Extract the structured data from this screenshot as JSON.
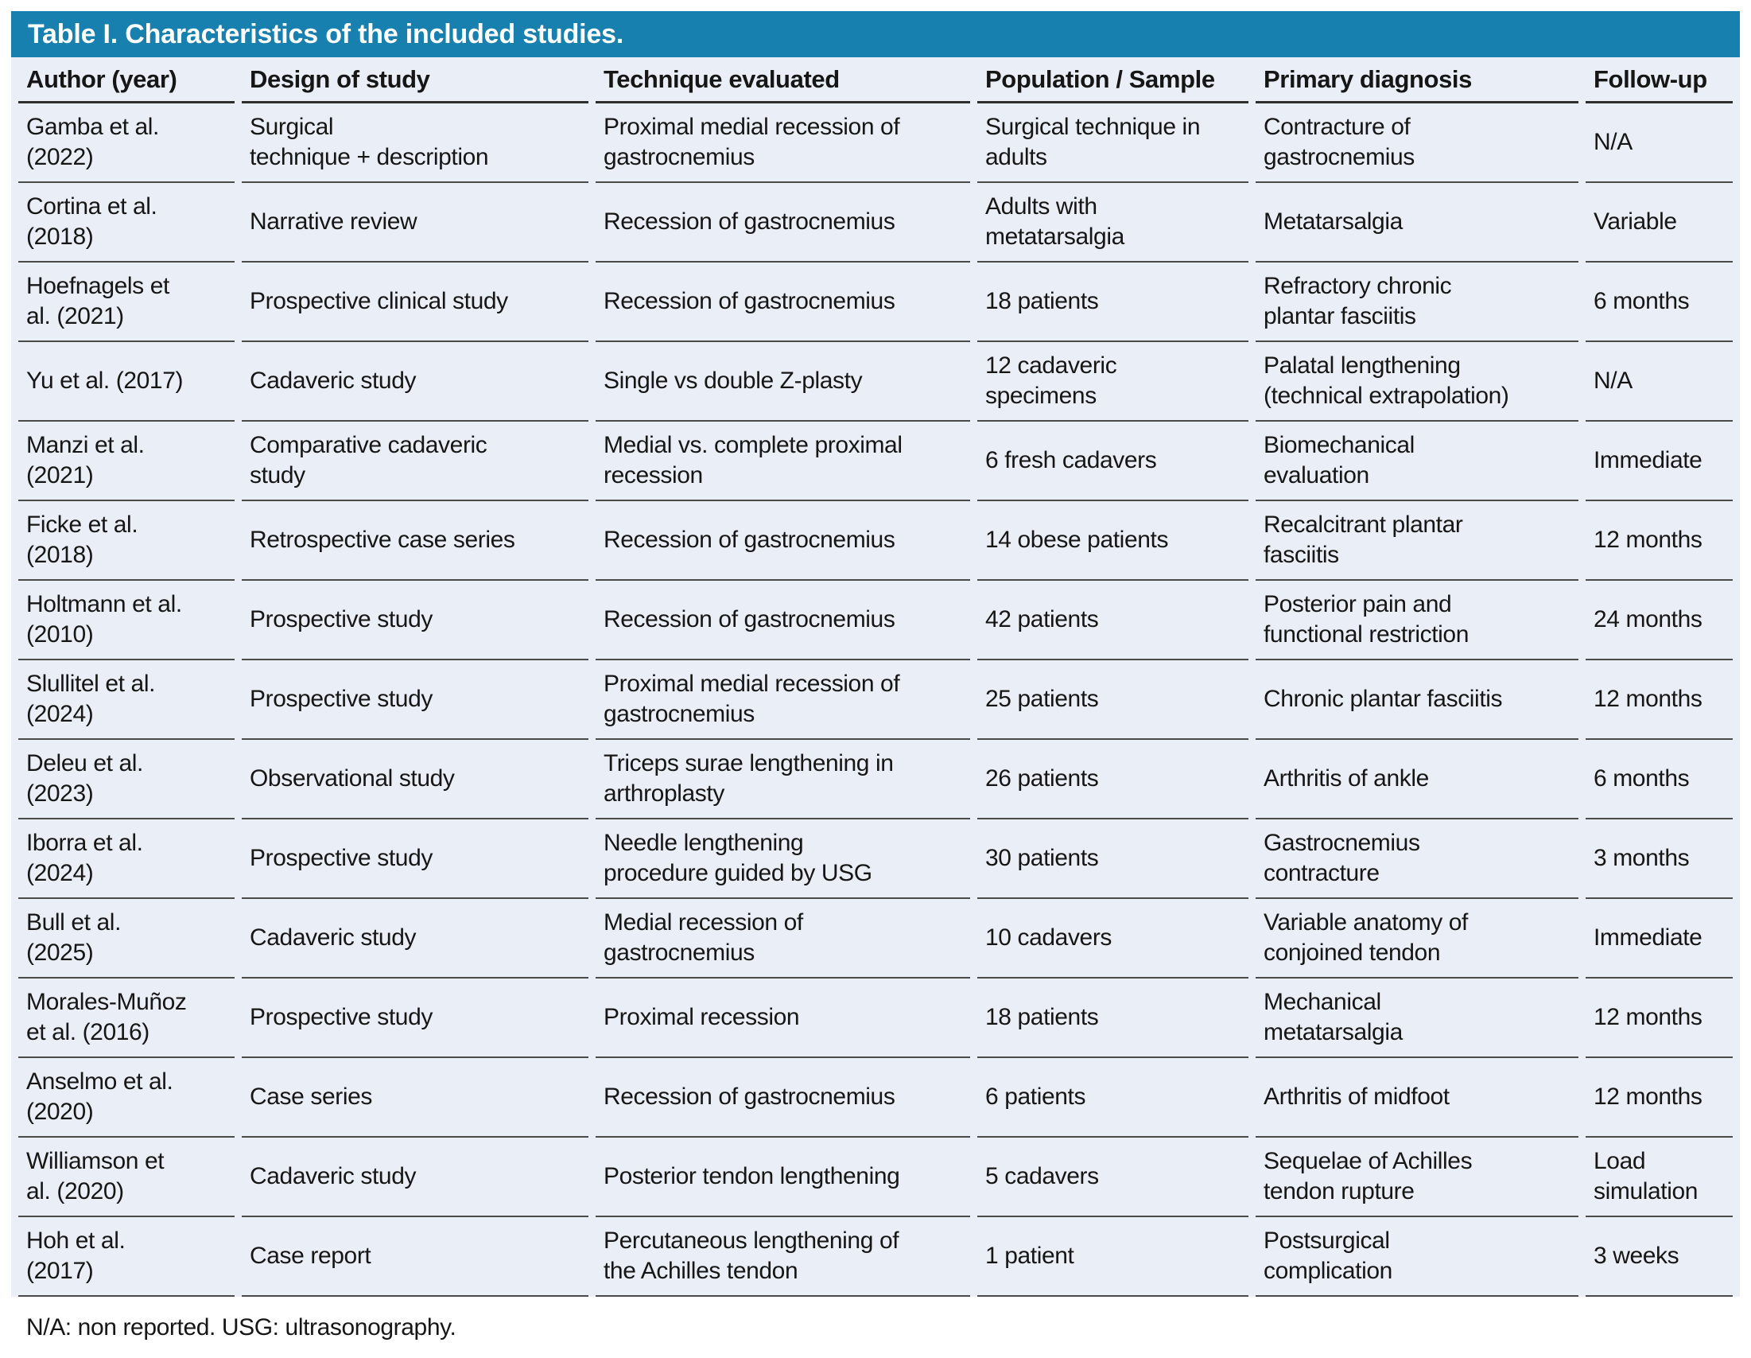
{
  "table": {
    "title": "Table I. Characteristics of the included studies.",
    "columns": [
      "Author (year)",
      "Design of study",
      "Technique evaluated",
      "Population / Sample",
      "Primary diagnosis",
      "Follow-up"
    ],
    "rows": [
      {
        "author": "Gamba et al.\n(2022)",
        "design": "Surgical\ntechnique + description",
        "technique": "Proximal medial recession of\ngastrocnemius",
        "population": "Surgical technique in\nadults",
        "diagnosis": "Contracture of\ngastrocnemius",
        "followup": "N/A"
      },
      {
        "author": "Cortina et al.\n(2018)",
        "design": "Narrative review",
        "technique": "Recession of gastrocnemius",
        "population": "Adults with\nmetatarsalgia",
        "diagnosis": "Metatarsalgia",
        "followup": "Variable"
      },
      {
        "author": "Hoefnagels et\nal. (2021)",
        "design": "Prospective clinical study",
        "technique": "Recession of gastrocnemius",
        "population": "18 patients",
        "diagnosis": "Refractory chronic\nplantar fasciitis",
        "followup": "6 months"
      },
      {
        "author": "Yu et al. (2017)",
        "design": "Cadaveric study",
        "technique": "Single vs double Z-plasty",
        "population": "12 cadaveric\nspecimens",
        "diagnosis": "Palatal lengthening\n(technical extrapolation)",
        "followup": "N/A"
      },
      {
        "author": "Manzi et al.\n(2021)",
        "design": "Comparative cadaveric\nstudy",
        "technique": "Medial vs. complete proximal\nrecession",
        "population": "6 fresh cadavers",
        "diagnosis": "Biomechanical\nevaluation",
        "followup": "Immediate"
      },
      {
        "author": "Ficke et al.\n(2018)",
        "design": "Retrospective case series",
        "technique": "Recession of gastrocnemius",
        "population": "14 obese patients",
        "diagnosis": "Recalcitrant plantar\nfasciitis",
        "followup": "12 months"
      },
      {
        "author": "Holtmann et al.\n(2010)",
        "design": "Prospective study",
        "technique": "Recession of gastrocnemius",
        "population": "42 patients",
        "diagnosis": "Posterior pain and\nfunctional restriction",
        "followup": "24 months"
      },
      {
        "author": "Slullitel et al.\n(2024)",
        "design": "Prospective study",
        "technique": "Proximal medial recession of\ngastrocnemius",
        "population": "25 patients",
        "diagnosis": "Chronic plantar fasciitis",
        "followup": "12 months"
      },
      {
        "author": "Deleu et al.\n(2023)",
        "design": "Observational study",
        "technique": "Triceps surae lengthening in\narthroplasty",
        "population": "26 patients",
        "diagnosis": "Arthritis of ankle",
        "followup": "6 months"
      },
      {
        "author": "Iborra et al.\n(2024)",
        "design": "Prospective study",
        "technique": "Needle lengthening\nprocedure guided by USG",
        "population": "30 patients",
        "diagnosis": "Gastrocnemius\ncontracture",
        "followup": "3 months"
      },
      {
        "author": "Bull et al.\n(2025)",
        "design": "Cadaveric study",
        "technique": "Medial recession of\ngastrocnemius",
        "population": "10 cadavers",
        "diagnosis": "Variable anatomy of\nconjoined tendon",
        "followup": "Immediate"
      },
      {
        "author": "Morales-Muñoz\net al. (2016)",
        "design": "Prospective study",
        "technique": "Proximal recession",
        "population": "18 patients",
        "diagnosis": "Mechanical\nmetatarsalgia",
        "followup": "12 months"
      },
      {
        "author": "Anselmo et al.\n(2020)",
        "design": "Case series",
        "technique": "Recession of gastrocnemius",
        "population": "6 patients",
        "diagnosis": "Arthritis of midfoot",
        "followup": "12 months"
      },
      {
        "author": "Williamson et\nal. (2020)",
        "design": "Cadaveric study",
        "technique": "Posterior tendon lengthening",
        "population": "5 cadavers",
        "diagnosis": "Sequelae of Achilles\ntendon rupture",
        "followup": "Load\nsimulation"
      },
      {
        "author": "Hoh et al.\n(2017)",
        "design": "Case report",
        "technique": "Percutaneous lengthening of\nthe Achilles tendon",
        "population": "1 patient",
        "diagnosis": "Postsurgical\ncomplication",
        "followup": "3 weeks"
      }
    ],
    "footnote": "N/A: non reported. USG: ultrasonography.",
    "colors": {
      "title_bar_bg": "#1780AF",
      "title_text": "#FFFFFF",
      "body_bg": "#EAEEF6",
      "rule": "#4A4A4A"
    }
  }
}
